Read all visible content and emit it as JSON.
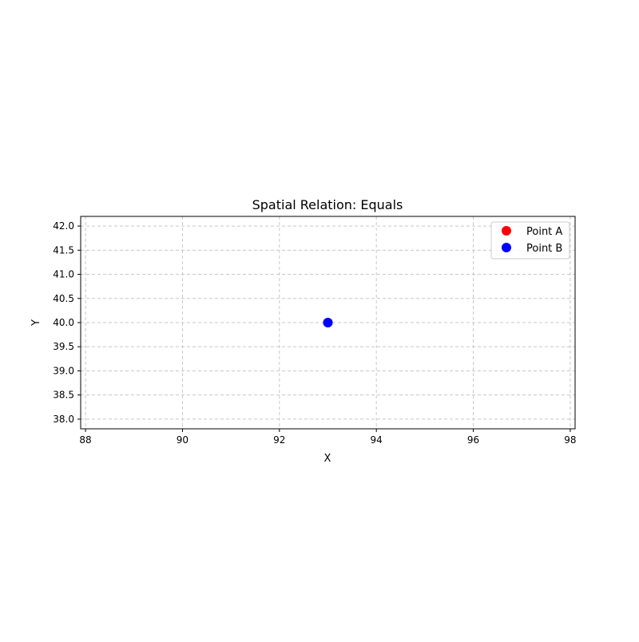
{
  "chart_data": {
    "type": "scatter",
    "title": "Spatial Relation: Equals",
    "xlabel": "X",
    "ylabel": "Y",
    "xlim": [
      87.9,
      98.1
    ],
    "ylim": [
      37.8,
      42.2
    ],
    "xticks": [
      88,
      90,
      92,
      94,
      96,
      98
    ],
    "yticks": [
      38.0,
      38.5,
      39.0,
      39.5,
      40.0,
      40.5,
      41.0,
      41.5,
      42.0
    ],
    "grid": true,
    "legend_position": "upper-right",
    "series": [
      {
        "name": "Point A",
        "color": "#ff0000",
        "points": [
          [
            93,
            40
          ]
        ]
      },
      {
        "name": "Point B",
        "color": "#0000ff",
        "points": [
          [
            93,
            40
          ]
        ]
      }
    ]
  }
}
